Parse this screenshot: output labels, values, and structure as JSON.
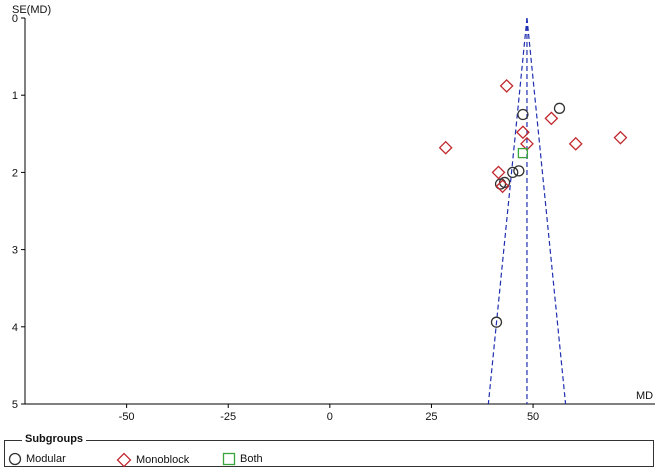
{
  "chart_data": {
    "type": "scatter",
    "title": "",
    "xlabel": "MD",
    "ylabel": "SE(MD)",
    "xlim": [
      -75,
      80
    ],
    "ylim": [
      0,
      5
    ],
    "y_inverted": true,
    "x_ticks": [
      "-50",
      "-25",
      "0",
      "25",
      "50"
    ],
    "x_tick_values": [
      -50,
      -25,
      0,
      25,
      50
    ],
    "y_ticks": [
      "0",
      "1",
      "2",
      "3",
      "4",
      "5"
    ],
    "y_tick_values": [
      0,
      1,
      2,
      3,
      4,
      5
    ],
    "funnel": {
      "center": 48.5,
      "apex_se": 0,
      "base_se": 5,
      "left_x_at_base": 39,
      "right_x_at_base": 58
    },
    "legend_title": "Subgroups",
    "legend_position": "bottom",
    "series": [
      {
        "name": "Modular",
        "marker": "circle",
        "color": "#333333",
        "points": [
          [
            47.5,
            1.25
          ],
          [
            56.5,
            1.17
          ],
          [
            42,
            2.15
          ],
          [
            43,
            2.13
          ],
          [
            45,
            2.0
          ],
          [
            46.5,
            1.98
          ],
          [
            41,
            3.94
          ]
        ]
      },
      {
        "name": "Monoblock",
        "marker": "diamond",
        "color": "#c0282d",
        "points": [
          [
            43.5,
            0.88
          ],
          [
            54.5,
            1.3
          ],
          [
            71.5,
            1.55
          ],
          [
            28.5,
            1.68
          ],
          [
            60.5,
            1.63
          ],
          [
            47.5,
            1.48
          ],
          [
            48.5,
            1.63
          ],
          [
            41.5,
            2.0
          ],
          [
            42.5,
            2.18
          ]
        ]
      },
      {
        "name": "Both",
        "marker": "square",
        "color": "#3aa53a",
        "points": [
          [
            47.5,
            1.75
          ]
        ]
      }
    ]
  }
}
